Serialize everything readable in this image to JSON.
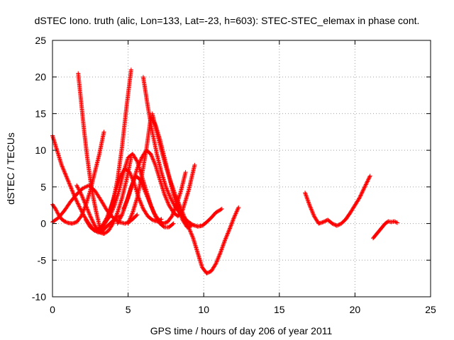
{
  "chart_data": {
    "type": "scatter",
    "title": "dSTEC Iono. truth (alic, Lon=133, Lat=-23, h=603): STEC-STEC_elemax in phase cont.",
    "xlabel": "GPS time / hours of day 206 of year 2011",
    "ylabel": "dSTEC  / TECUs",
    "xlim": [
      0,
      25
    ],
    "ylim": [
      -10,
      25
    ],
    "xticks": [
      0,
      5,
      10,
      15,
      20,
      25
    ],
    "yticks": [
      -10,
      -5,
      0,
      5,
      10,
      15,
      20,
      25
    ],
    "grid": true,
    "marker": "+",
    "color": "#ff0000",
    "series": [
      {
        "x": [
          0.0,
          0.3,
          0.6,
          0.9,
          1.2,
          1.5,
          1.8,
          2.1,
          2.4,
          2.7,
          3.0,
          3.3,
          3.6,
          3.9,
          4.2,
          4.5
        ],
        "y": [
          12.0,
          10.0,
          8.0,
          6.5,
          5.0,
          3.5,
          2.2,
          1.0,
          0.0,
          -0.8,
          -1.2,
          -1.0,
          -0.4,
          0.2,
          0.8,
          1.0
        ]
      },
      {
        "x": [
          0.0,
          0.2,
          0.4,
          0.6,
          0.8,
          1.0,
          1.3,
          1.6,
          1.9,
          2.2,
          2.5,
          2.8,
          3.1,
          3.4
        ],
        "y": [
          2.6,
          2.0,
          1.2,
          0.6,
          0.3,
          0.1,
          0.0,
          0.2,
          1.0,
          2.5,
          4.5,
          7.0,
          9.5,
          12.5
        ]
      },
      {
        "x": [
          0.0,
          0.4,
          0.8,
          1.2,
          1.6,
          2.0,
          2.4,
          2.8,
          3.2,
          3.6,
          4.0,
          4.4,
          4.8,
          5.2,
          5.6
        ],
        "y": [
          0.2,
          0.8,
          1.8,
          3.0,
          4.0,
          4.8,
          5.2,
          4.5,
          3.2,
          1.8,
          0.8,
          0.2,
          0.0,
          0.4,
          1.2
        ]
      },
      {
        "x": [
          1.7,
          1.9,
          2.1,
          2.3,
          2.5,
          2.7,
          2.9,
          3.1,
          3.3
        ],
        "y": [
          20.5,
          16.5,
          12.5,
          9.0,
          6.0,
          3.5,
          1.5,
          -0.3,
          -1.2
        ]
      },
      {
        "x": [
          1.6,
          1.9,
          2.2,
          2.5,
          2.8,
          3.1,
          3.4,
          3.7,
          4.0,
          4.3,
          4.6,
          4.9,
          5.2
        ],
        "y": [
          5.2,
          4.0,
          2.5,
          1.0,
          -0.3,
          -1.2,
          -1.4,
          -1.0,
          0.0,
          1.5,
          3.5,
          6.0,
          9.0
        ]
      },
      {
        "x": [
          2.2,
          2.5,
          2.8,
          3.1,
          3.4,
          3.7,
          4.0,
          4.3,
          4.6,
          4.9,
          5.2
        ],
        "y": [
          0.5,
          -0.5,
          -1.0,
          -1.0,
          -0.3,
          1.0,
          3.0,
          6.0,
          10.5,
          16.0,
          21.0
        ]
      },
      {
        "x": [
          3.0,
          3.3,
          3.6,
          3.9,
          4.2,
          4.5,
          4.8,
          5.1,
          5.4,
          5.7,
          6.0,
          6.3,
          6.6,
          6.9,
          7.2
        ],
        "y": [
          -0.8,
          -0.3,
          0.8,
          2.5,
          4.5,
          6.5,
          7.5,
          7.0,
          5.5,
          3.5,
          2.0,
          1.0,
          0.5,
          0.3,
          0.6
        ]
      },
      {
        "x": [
          3.5,
          3.8,
          4.1,
          4.4,
          4.7,
          5.0,
          5.3,
          5.6,
          5.9,
          6.2,
          6.5,
          6.8,
          7.1,
          7.4,
          7.7,
          8.0
        ],
        "y": [
          0.2,
          1.0,
          2.5,
          4.5,
          7.0,
          9.0,
          9.5,
          8.5,
          6.5,
          4.5,
          2.5,
          1.0,
          0.0,
          -0.5,
          -0.5,
          0.0
        ]
      },
      {
        "x": [
          4.3,
          4.6,
          4.9,
          5.2,
          5.5,
          5.8,
          6.1,
          6.4,
          6.7,
          7.0,
          7.3,
          7.6,
          7.9,
          8.2,
          8.5,
          8.8
        ],
        "y": [
          0.0,
          1.2,
          3.0,
          5.0,
          6.5,
          6.0,
          4.5,
          3.0,
          1.5,
          0.5,
          0.0,
          0.2,
          1.0,
          2.5,
          4.5,
          7.0
        ]
      },
      {
        "x": [
          4.7,
          5.0,
          5.3,
          5.6,
          5.9,
          6.2,
          6.5,
          6.8,
          7.1,
          7.4,
          7.7,
          8.0,
          8.3,
          8.6,
          9.0,
          9.4
        ],
        "y": [
          2.0,
          3.5,
          5.5,
          7.5,
          9.0,
          10.0,
          9.5,
          8.0,
          6.0,
          4.0,
          2.5,
          1.5,
          1.0,
          1.8,
          4.5,
          8.0
        ]
      },
      {
        "x": [
          5.0,
          5.3,
          5.6,
          5.9,
          6.2,
          6.5,
          6.8,
          7.1,
          7.4,
          7.7,
          8.0,
          8.3,
          8.6,
          8.9,
          9.2
        ],
        "y": [
          0.0,
          1.5,
          3.5,
          6.5,
          10.0,
          14.5,
          13.5,
          11.5,
          9.0,
          6.5,
          4.0,
          2.0,
          0.5,
          -0.5,
          -0.3
        ]
      },
      {
        "x": [
          6.0,
          6.3,
          6.6,
          6.9,
          7.2,
          7.5,
          7.8,
          8.1,
          8.4,
          8.7,
          9.0,
          9.3,
          9.6,
          9.9,
          10.2,
          10.5,
          10.8,
          11.2
        ],
        "y": [
          20.0,
          16.0,
          12.5,
          9.5,
          7.0,
          5.0,
          3.5,
          2.3,
          1.5,
          0.8,
          0.2,
          -0.2,
          -0.4,
          -0.3,
          0.2,
          0.8,
          1.5,
          2.0
        ]
      },
      {
        "x": [
          6.6,
          6.9,
          7.2,
          7.5,
          7.8,
          8.1,
          8.4,
          8.7,
          9.0,
          9.3,
          9.6,
          9.9,
          10.2,
          10.5,
          10.8,
          11.1,
          11.4,
          11.7,
          12.0,
          12.3
        ],
        "y": [
          15.0,
          12.5,
          10.0,
          7.8,
          5.8,
          4.0,
          2.5,
          1.0,
          -0.5,
          -2.0,
          -4.0,
          -6.0,
          -6.8,
          -6.5,
          -5.5,
          -4.0,
          -2.3,
          -0.8,
          0.8,
          2.2
        ]
      },
      {
        "x": [
          16.7,
          17.0,
          17.3,
          17.6,
          17.9,
          18.2,
          18.5,
          18.8,
          19.1,
          19.4,
          19.7,
          20.0,
          20.3,
          20.6,
          21.0
        ],
        "y": [
          4.2,
          2.5,
          1.0,
          0.0,
          0.2,
          0.5,
          0.0,
          -0.3,
          0.0,
          0.6,
          1.5,
          2.5,
          3.5,
          4.8,
          6.5
        ]
      },
      {
        "x": [
          21.2,
          21.4,
          21.6,
          21.8,
          22.0,
          22.2,
          22.4,
          22.6,
          22.8
        ],
        "y": [
          -2.0,
          -1.5,
          -1.0,
          -0.5,
          0.0,
          0.3,
          0.2,
          0.3,
          0.1
        ]
      }
    ]
  }
}
